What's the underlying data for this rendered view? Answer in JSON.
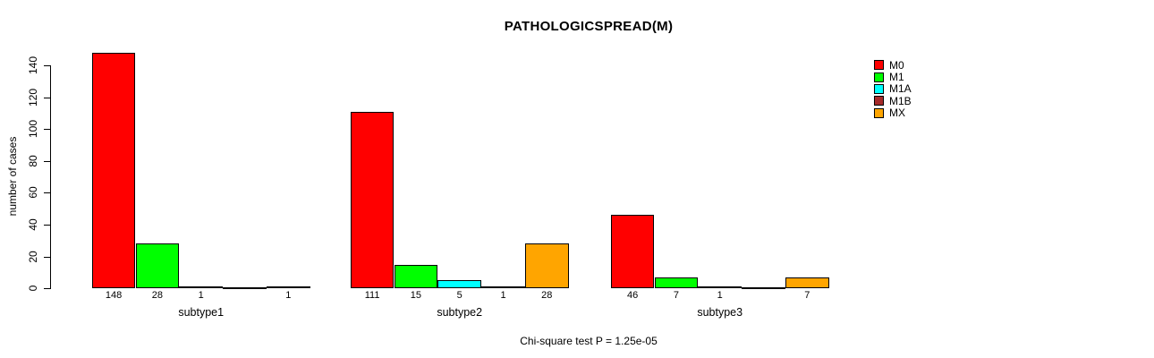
{
  "chart_data": {
    "type": "bar",
    "title": "PATHOLOGICSPREAD(M)",
    "xlabel": "",
    "ylabel": "number of cases",
    "ylim": [
      0,
      140
    ],
    "yticks": [
      0,
      20,
      40,
      60,
      80,
      100,
      120,
      140
    ],
    "grid": false,
    "legend_position": "top-right",
    "annotation": "Chi-square test P = 1.25e-05",
    "categories": [
      "subtype1",
      "subtype2",
      "subtype3"
    ],
    "series": [
      {
        "name": "M0",
        "color": "#FF0000",
        "values": [
          148,
          111,
          46
        ]
      },
      {
        "name": "M1",
        "color": "#00FF00",
        "values": [
          28,
          15,
          7
        ]
      },
      {
        "name": "M1A",
        "color": "#00FFFF",
        "values": [
          1,
          5,
          1
        ]
      },
      {
        "name": "M1B",
        "color": "#A52A2A",
        "values": [
          0,
          1,
          0
        ]
      },
      {
        "name": "MX",
        "color": "#FFA500",
        "values": [
          1,
          28,
          7
        ]
      }
    ],
    "bar_value_labels": [
      [
        "148",
        "28",
        "1",
        "",
        "1"
      ],
      [
        "111",
        "15",
        "5",
        "1",
        "28"
      ],
      [
        "46",
        "7",
        "1",
        "",
        "7"
      ]
    ]
  }
}
